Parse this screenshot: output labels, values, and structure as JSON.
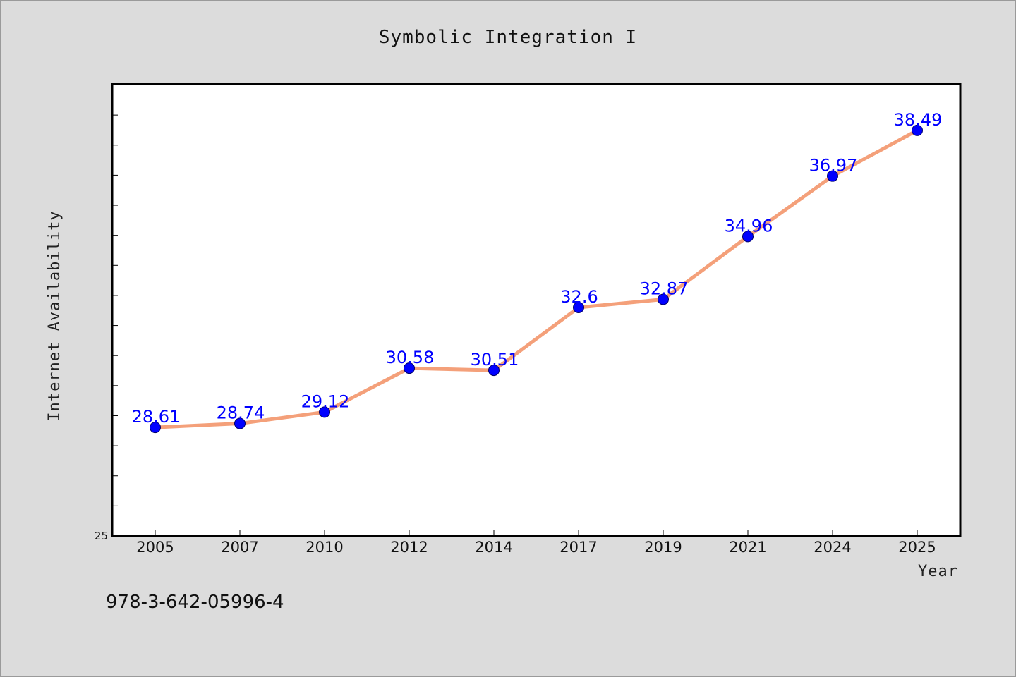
{
  "footer_text": "978-3-642-05996-4",
  "colors": {
    "line": "#f4a07a",
    "marker": "#0000ff",
    "label": "#0000ff",
    "background": "#dcdcdc",
    "plot_background": "#ffffff"
  },
  "chart_data": {
    "type": "line",
    "title": "Symbolic Integration I",
    "xlabel": "Year",
    "ylabel": "Internet Availability",
    "categories": [
      "2005",
      "2007",
      "2010",
      "2012",
      "2014",
      "2017",
      "2019",
      "2021",
      "2024",
      "2025"
    ],
    "series": [
      {
        "values": [
          28.61,
          28.74,
          29.12,
          30.58,
          30.51,
          32.6,
          32.87,
          34.96,
          36.97,
          38.49
        ]
      }
    ],
    "data_labels": [
      "28.61",
      "28.74",
      "29.12",
      "30.58",
      "30.51",
      "32.6",
      "32.87",
      "34.96",
      "36.97",
      "38.49"
    ],
    "ylim": [
      25,
      40
    ],
    "y_minor_step": 1,
    "y_tick_labels": [
      "25"
    ],
    "grid": false,
    "legend": "none"
  }
}
